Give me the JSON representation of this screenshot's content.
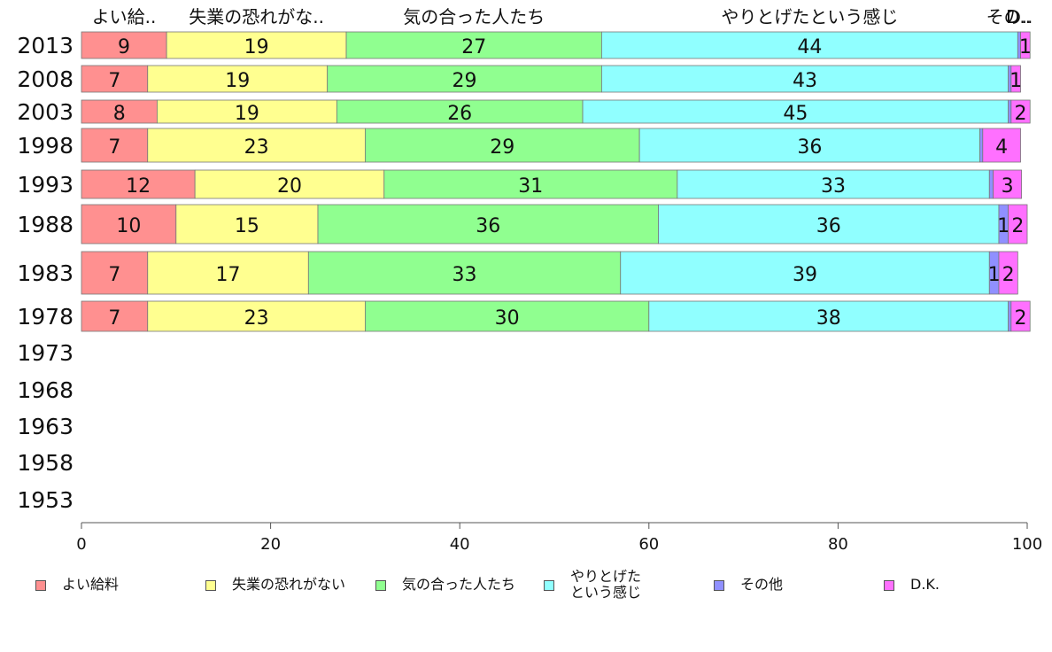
{
  "chart_data": {
    "type": "bar",
    "orientation": "horizontal",
    "stacked": true,
    "categories": [
      "2013",
      "2008",
      "2003",
      "1998",
      "1993",
      "1988",
      "1983",
      "1978",
      "1973",
      "1968",
      "1963",
      "1958",
      "1953"
    ],
    "series": [
      {
        "name": "よい給料",
        "short_label": "よい給..",
        "color": "#ff9090",
        "values": [
          9,
          7,
          8,
          7,
          12,
          10,
          7,
          7,
          null,
          null,
          null,
          null,
          null
        ]
      },
      {
        "name": "失業の恐れがない",
        "short_label": "失業の恐れがな..",
        "color": "#ffff90",
        "values": [
          19,
          19,
          19,
          23,
          20,
          15,
          17,
          23,
          null,
          null,
          null,
          null,
          null
        ]
      },
      {
        "name": "気の合った人たち",
        "short_label": "気の合った人たち",
        "color": "#90ff90",
        "values": [
          27,
          29,
          26,
          29,
          31,
          36,
          33,
          30,
          null,
          null,
          null,
          null,
          null
        ]
      },
      {
        "name": "やりとげたという感じ",
        "legend_label": "やりとげた\nという感じ",
        "short_label": "やりとげたという感じ",
        "color": "#90ffff",
        "values": [
          44,
          43,
          45,
          36,
          33,
          36,
          39,
          38,
          null,
          null,
          null,
          null,
          null
        ]
      },
      {
        "name": "その他",
        "short_label": "その..",
        "color": "#9090ff",
        "values": [
          0.3,
          0.3,
          0.3,
          0.3,
          0.4,
          1,
          1,
          0.3,
          null,
          null,
          null,
          null,
          null
        ],
        "labels": [
          "",
          "",
          "",
          "",
          "",
          "1",
          "1",
          "",
          "",
          "",
          "",
          "",
          ""
        ]
      },
      {
        "name": "D.K.",
        "short_label": "D..",
        "color": "#ff70ff",
        "values": [
          1,
          1,
          2,
          4,
          3,
          2,
          2,
          2,
          null,
          null,
          null,
          null,
          null
        ]
      }
    ],
    "xlim": [
      0,
      100
    ],
    "xticks": [
      0,
      20,
      40,
      60,
      80,
      100
    ],
    "legend_position": "bottom",
    "grid": false
  }
}
